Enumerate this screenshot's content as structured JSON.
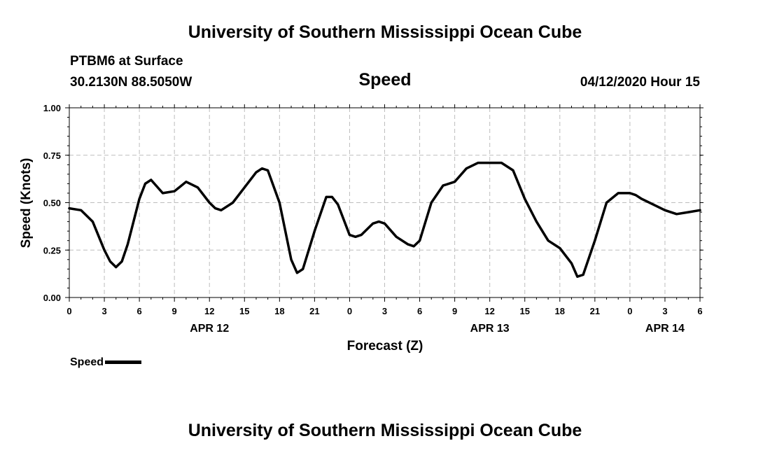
{
  "header": {
    "title": "University of Southern Mississippi Ocean Cube",
    "station": "PTBM6 at Surface",
    "coords": "30.2130N 88.5050W",
    "variable": "Speed",
    "datetime": "04/12/2020 Hour 15"
  },
  "footer": {
    "title": "University of Southern Mississippi Ocean Cube"
  },
  "chart_data": {
    "type": "line",
    "title": "Speed",
    "xlabel": "Forecast (Z)",
    "ylabel": "Speed (Knots)",
    "xlim": [
      0,
      54
    ],
    "ylim": [
      0,
      1
    ],
    "grid": true,
    "x_ticks": [
      0,
      3,
      6,
      9,
      12,
      15,
      18,
      21,
      24,
      27,
      30,
      33,
      36,
      39,
      42,
      45,
      48,
      51,
      54
    ],
    "x_tick_labels": [
      "0",
      "3",
      "6",
      "9",
      "12",
      "15",
      "18",
      "21",
      "0",
      "3",
      "6",
      "9",
      "12",
      "15",
      "18",
      "21",
      "0",
      "3",
      "6"
    ],
    "date_labels": [
      {
        "x": 12,
        "label": "APR 12"
      },
      {
        "x": 36,
        "label": "APR 13"
      },
      {
        "x": 51,
        "label": "APR 14"
      }
    ],
    "y_ticks": [
      0.0,
      0.25,
      0.5,
      0.75,
      1.0
    ],
    "y_tick_labels": [
      "0.00",
      "0.25",
      "0.50",
      "0.75",
      "1.00"
    ],
    "legend": {
      "label": "Speed",
      "position": "bottom-left"
    },
    "series": [
      {
        "name": "Speed",
        "x": [
          0,
          1,
          2,
          3,
          3.5,
          4,
          4.5,
          5,
          6,
          6.5,
          7,
          8,
          9,
          10,
          11,
          12,
          12.5,
          13,
          14,
          15,
          16,
          16.5,
          17,
          18,
          19,
          19.5,
          20,
          21,
          22,
          22.5,
          23,
          24,
          24.5,
          25,
          26,
          26.5,
          27,
          28,
          29,
          29.5,
          30,
          31,
          32,
          33,
          34,
          35,
          36,
          37,
          38,
          39,
          40,
          41,
          42,
          43,
          43.5,
          44,
          45,
          46,
          47,
          48,
          48.5,
          49,
          50,
          51,
          52,
          53,
          54
        ],
        "values": [
          0.47,
          0.46,
          0.4,
          0.25,
          0.19,
          0.16,
          0.19,
          0.28,
          0.52,
          0.6,
          0.62,
          0.55,
          0.56,
          0.61,
          0.58,
          0.5,
          0.47,
          0.46,
          0.5,
          0.58,
          0.66,
          0.68,
          0.67,
          0.5,
          0.2,
          0.13,
          0.15,
          0.35,
          0.53,
          0.53,
          0.49,
          0.33,
          0.32,
          0.33,
          0.39,
          0.4,
          0.39,
          0.32,
          0.28,
          0.27,
          0.3,
          0.5,
          0.59,
          0.61,
          0.68,
          0.71,
          0.71,
          0.71,
          0.67,
          0.52,
          0.4,
          0.3,
          0.26,
          0.18,
          0.11,
          0.12,
          0.3,
          0.5,
          0.55,
          0.55,
          0.54,
          0.52,
          0.49,
          0.46,
          0.44,
          0.45,
          0.46
        ]
      }
    ]
  }
}
